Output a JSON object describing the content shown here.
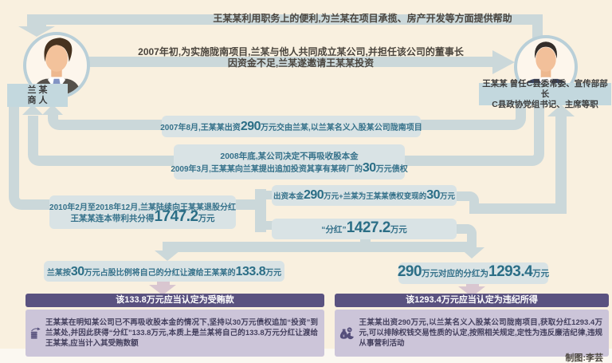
{
  "colors": {
    "background": "#f9f0df",
    "connector_band": "#cbd8da",
    "event_box": "#d9e3e5",
    "teal_text": "#35718a",
    "purple_header": "#5a5280",
    "purple_body": "#ccc5d9",
    "lavender_arrow": "#d9c6d0"
  },
  "actors": {
    "lan": {
      "name": "兰 某",
      "role": "商 人"
    },
    "wang": {
      "title_line1": "王某某 曾任C县委常委、宣传部部长",
      "title_line2": "C县政协党组书记、主席等职"
    }
  },
  "flows": {
    "help": "王某某利用职务上的便利,为兰某在项目承揽、房产开发等方面提供帮助",
    "invite_line1": "2007年初,为实施陇南项目,兰某与他人共同成立某公司,并担任该公司的董事长",
    "invite_line2": "因资金不足,兰某遂邀请王某某投资"
  },
  "events": {
    "invest": [
      {
        "t": "2007年8月,王某某出资"
      },
      {
        "t": "290",
        "big": true
      },
      {
        "t": "万元交由兰某,以兰某名义入股某公司陇南项目"
      }
    ],
    "stop_line": "2008年底,某公司决定不再吸收股本金",
    "debt": [
      {
        "t": "2009年3月,王某某向兰某提出追加投资其享有某砖厂的"
      },
      {
        "t": "30",
        "big": true
      },
      {
        "t": "万元债权"
      }
    ],
    "payout_line": "2010年2月至2018年12月,兰某陆续向王某某退股分红",
    "payout_total": [
      {
        "t": "王某某连本带利共分得"
      },
      {
        "t": "1747.2",
        "big": true
      },
      {
        "t": "万元"
      }
    ]
  },
  "breakdown": {
    "capital": [
      {
        "t": "出资本金"
      },
      {
        "t": "290",
        "big": true
      },
      {
        "t": "万元+兰某为王某某债权变现的"
      },
      {
        "t": "30",
        "big": true
      },
      {
        "t": "万元"
      }
    ],
    "dividend": [
      {
        "t": "“分红”"
      },
      {
        "t": "1427.2",
        "big": true
      },
      {
        "t": "万元"
      }
    ],
    "bribe_share": [
      {
        "t": "兰某按"
      },
      {
        "t": "30",
        "big": true
      },
      {
        "t": "万元占股比例将自己的分红让渡给王某某的"
      },
      {
        "t": "133.8",
        "big": true
      },
      {
        "t": "万元"
      }
    ],
    "legit_share": [
      {
        "t": "290",
        "big": true
      },
      {
        "t": "万元对应的分红为"
      },
      {
        "t": "1293.4",
        "big": true
      },
      {
        "t": "万元"
      }
    ]
  },
  "verdicts": {
    "left": {
      "header": "该133.8万元应当认定为受贿款",
      "body": "王某某在明知某公司已不再吸收股本金的情况下,坚持以30万元债权追加“投资”到兰某处,并因此获得“分红”133.8万元,本质上是兰某将自己的133.8万元分红让渡给王某某,应当计入其受贿数额"
    },
    "right": {
      "header": "该1293.4万元应当认定为违纪所得",
      "body": "王某某出资290万元,以兰某名义入股某公司陇南项目,获取分红1293.4万元,可以排除权钱交易性质的认定,按照相关规定,定性为违反廉洁纪律,违规从事营利活动"
    }
  },
  "icons": {
    "left_panel": "coin-stack-growth-icon",
    "right_panel": "money-bag-pie-icon"
  },
  "credit": "制图:李芸"
}
